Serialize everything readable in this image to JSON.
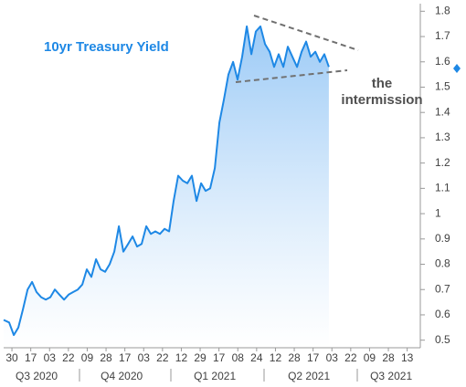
{
  "chart_data": {
    "type": "line",
    "title": "10yr Treasury Yield",
    "annotation": "the intermission",
    "color": "#1e88e5",
    "x": [
      -0.44,
      -0.15,
      0.1,
      0.34,
      0.58,
      0.83,
      1.07,
      1.31,
      1.55,
      1.8,
      2.04,
      2.28,
      2.52,
      2.77,
      3.01,
      3.25,
      3.5,
      3.74,
      3.98,
      4.22,
      4.47,
      4.71,
      4.95,
      5.19,
      5.44,
      5.68,
      5.92,
      6.17,
      6.41,
      6.65,
      6.89,
      7.14,
      7.38,
      7.62,
      7.86,
      8.11,
      8.35,
      8.59,
      8.83,
      9.08,
      9.32,
      9.56,
      9.81,
      10.05,
      10.29,
      10.53,
      10.78,
      11.02,
      11.26,
      11.5,
      11.75,
      11.99,
      12.23,
      12.48,
      12.72,
      12.96,
      13.2,
      13.45,
      13.69,
      13.93,
      14.17,
      14.42,
      14.66,
      14.9,
      15.15,
      15.39,
      15.63,
      15.87,
      16.12,
      16.36,
      16.6,
      16.84
    ],
    "values": [
      0.58,
      0.57,
      0.52,
      0.55,
      0.62,
      0.7,
      0.73,
      0.69,
      0.67,
      0.66,
      0.67,
      0.7,
      0.68,
      0.66,
      0.68,
      0.69,
      0.7,
      0.72,
      0.78,
      0.75,
      0.82,
      0.78,
      0.77,
      0.8,
      0.85,
      0.95,
      0.85,
      0.88,
      0.91,
      0.87,
      0.88,
      0.95,
      0.92,
      0.93,
      0.92,
      0.94,
      0.93,
      1.05,
      1.15,
      1.13,
      1.12,
      1.15,
      1.05,
      1.12,
      1.09,
      1.1,
      1.18,
      1.36,
      1.45,
      1.55,
      1.6,
      1.53,
      1.62,
      1.74,
      1.63,
      1.72,
      1.74,
      1.67,
      1.64,
      1.58,
      1.63,
      1.58,
      1.66,
      1.62,
      1.58,
      1.64,
      1.68,
      1.62,
      1.64,
      1.6,
      1.63,
      1.58
    ],
    "xlim": [
      -0.44,
      21.6
    ],
    "xticks": [
      {
        "value": 0,
        "label": "30"
      },
      {
        "value": 1,
        "label": "17"
      },
      {
        "value": 2,
        "label": "03"
      },
      {
        "value": 3,
        "label": "22"
      },
      {
        "value": 4,
        "label": "09"
      },
      {
        "value": 5,
        "label": "28"
      },
      {
        "value": 6,
        "label": "17"
      },
      {
        "value": 7,
        "label": "03"
      },
      {
        "value": 8,
        "label": "22"
      },
      {
        "value": 9,
        "label": "12"
      },
      {
        "value": 10,
        "label": "29"
      },
      {
        "value": 11,
        "label": "17"
      },
      {
        "value": 12,
        "label": "08"
      },
      {
        "value": 13,
        "label": "24"
      },
      {
        "value": 14,
        "label": "12"
      },
      {
        "value": 15,
        "label": "28"
      },
      {
        "value": 16,
        "label": "17"
      },
      {
        "value": 17,
        "label": "03"
      },
      {
        "value": 18,
        "label": "22"
      },
      {
        "value": 19,
        "label": "09"
      },
      {
        "value": 20,
        "label": "28"
      },
      {
        "value": 21,
        "label": "13"
      }
    ],
    "quarters": [
      {
        "value": 1.31,
        "label": "Q3 2020"
      },
      {
        "value": 5.83,
        "label": "Q4 2020"
      },
      {
        "value": 10.78,
        "label": "Q1 2021"
      },
      {
        "value": 15.78,
        "label": "Q2 2021"
      },
      {
        "value": 20.15,
        "label": "Q3 2021"
      }
    ],
    "ylim": [
      0.47,
      1.83
    ],
    "yticks": [
      0.5,
      0.6,
      0.7,
      0.8,
      0.9,
      1,
      1.1,
      1.2,
      1.3,
      1.4,
      1.5,
      1.6,
      1.7,
      1.8
    ]
  }
}
